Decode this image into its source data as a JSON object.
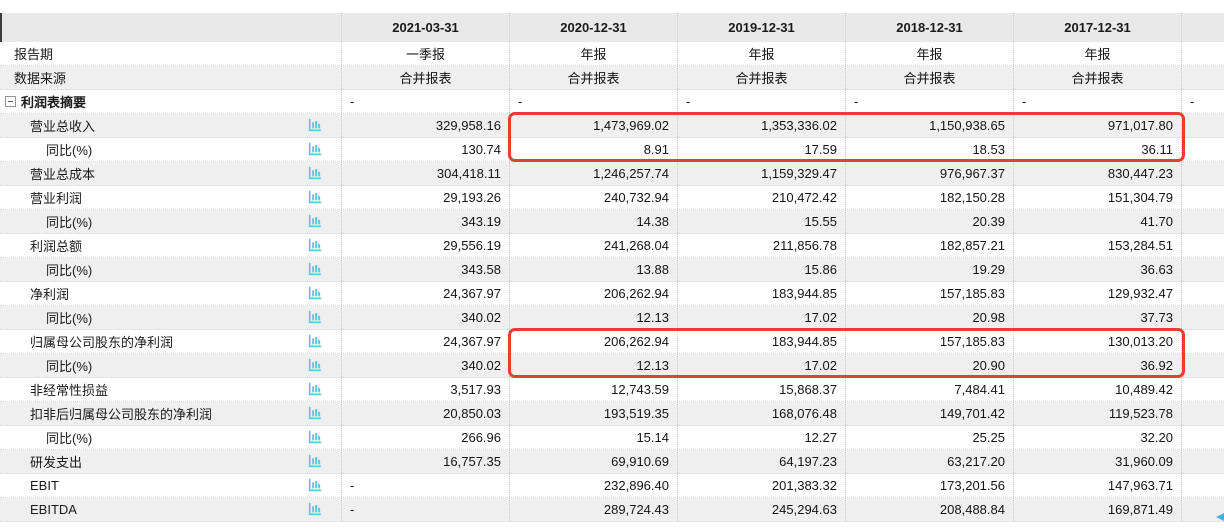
{
  "table": {
    "title": "利润表摘要",
    "columns": [
      {
        "label": "2021-03-31"
      },
      {
        "label": "2020-12-31"
      },
      {
        "label": "2019-12-31"
      },
      {
        "label": "2018-12-31"
      },
      {
        "label": "2017-12-31"
      }
    ],
    "rows": [
      {
        "label": "报告期",
        "indent": 0,
        "icon": false,
        "align": "center",
        "values": [
          "一季报",
          "年报",
          "年报",
          "年报",
          "年报",
          ""
        ]
      },
      {
        "label": "数据来源",
        "indent": 0,
        "icon": false,
        "align": "center",
        "values": [
          "合并报表",
          "合并报表",
          "合并报表",
          "合并报表",
          "合并报表",
          ""
        ]
      },
      {
        "label": "利润表摘要",
        "section": true,
        "icon": false,
        "values": [
          "-",
          "-",
          "-",
          "-",
          "-",
          "-"
        ]
      },
      {
        "label": "营业总收入",
        "indent": 1,
        "icon": true,
        "values": [
          "329,958.16",
          "1,473,969.02",
          "1,353,336.02",
          "1,150,938.65",
          "971,017.80",
          ""
        ]
      },
      {
        "label": "同比(%)",
        "indent": 2,
        "icon": true,
        "values": [
          "130.74",
          "8.91",
          "17.59",
          "18.53",
          "36.11",
          ""
        ]
      },
      {
        "label": "营业总成本",
        "indent": 1,
        "icon": true,
        "values": [
          "304,418.11",
          "1,246,257.74",
          "1,159,329.47",
          "976,967.37",
          "830,447.23",
          ""
        ]
      },
      {
        "label": "营业利润",
        "indent": 1,
        "icon": true,
        "values": [
          "29,193.26",
          "240,732.94",
          "210,472.42",
          "182,150.28",
          "151,304.79",
          ""
        ]
      },
      {
        "label": "同比(%)",
        "indent": 2,
        "icon": true,
        "values": [
          "343.19",
          "14.38",
          "15.55",
          "20.39",
          "41.70",
          ""
        ]
      },
      {
        "label": "利润总额",
        "indent": 1,
        "icon": true,
        "values": [
          "29,556.19",
          "241,268.04",
          "211,856.78",
          "182,857.21",
          "153,284.51",
          ""
        ]
      },
      {
        "label": "同比(%)",
        "indent": 2,
        "icon": true,
        "values": [
          "343.58",
          "13.88",
          "15.86",
          "19.29",
          "36.63",
          ""
        ]
      },
      {
        "label": "净利润",
        "indent": 1,
        "icon": true,
        "values": [
          "24,367.97",
          "206,262.94",
          "183,944.85",
          "157,185.83",
          "129,932.47",
          ""
        ]
      },
      {
        "label": "同比(%)",
        "indent": 2,
        "icon": true,
        "values": [
          "340.02",
          "12.13",
          "17.02",
          "20.98",
          "37.73",
          ""
        ]
      },
      {
        "label": "归属母公司股东的净利润",
        "indent": 1,
        "icon": true,
        "values": [
          "24,367.97",
          "206,262.94",
          "183,944.85",
          "157,185.83",
          "130,013.20",
          ""
        ]
      },
      {
        "label": "同比(%)",
        "indent": 2,
        "icon": true,
        "values": [
          "340.02",
          "12.13",
          "17.02",
          "20.90",
          "36.92",
          ""
        ]
      },
      {
        "label": "非经常性损益",
        "indent": 1,
        "icon": true,
        "values": [
          "3,517.93",
          "12,743.59",
          "15,868.37",
          "7,484.41",
          "10,489.42",
          ""
        ]
      },
      {
        "label": "扣非后归属母公司股东的净利润",
        "indent": 1,
        "icon": true,
        "values": [
          "20,850.03",
          "193,519.35",
          "168,076.48",
          "149,701.42",
          "119,523.78",
          ""
        ]
      },
      {
        "label": "同比(%)",
        "indent": 2,
        "icon": true,
        "values": [
          "266.96",
          "15.14",
          "12.27",
          "25.25",
          "32.20",
          ""
        ]
      },
      {
        "label": "研发支出",
        "indent": 1,
        "icon": true,
        "values": [
          "16,757.35",
          "69,910.69",
          "64,197.23",
          "63,217.20",
          "31,960.09",
          ""
        ]
      },
      {
        "label": "EBIT",
        "indent": 1,
        "icon": true,
        "values": [
          "-",
          "232,896.40",
          "201,383.32",
          "173,201.56",
          "147,963.71",
          ""
        ]
      },
      {
        "label": "EBITDA",
        "indent": 1,
        "icon": true,
        "values": [
          "-",
          "289,724.43",
          "245,294.63",
          "208,488.84",
          "169,871.49",
          ""
        ]
      }
    ]
  },
  "highlights": [
    {
      "name": "revenue-highlight",
      "rows": [
        "营业总收入",
        "同比(%)"
      ],
      "columns": [
        "2020-12-31",
        "2019-12-31",
        "2018-12-31",
        "2017-12-31"
      ],
      "color": "#e5402e"
    },
    {
      "name": "net-profit-attrib-highlight",
      "rows": [
        "归属母公司股东的净利润",
        "同比(%)"
      ],
      "columns": [
        "2020-12-31",
        "2019-12-31",
        "2018-12-31",
        "2017-12-31"
      ],
      "color": "#e5402e"
    }
  ],
  "icons": {
    "row_chart_icon": "bar-chart",
    "row_chart_icon_color": "#5cc6d9",
    "collapse_icon": "collapse-minus-box",
    "scroll_arrow": "scroll-left-arrow",
    "scroll_arrow_color": "#49aede"
  },
  "colors": {
    "header_bg": "#e9e9e9",
    "alt_row_bg": "#efefef",
    "highlight_border": "#e5402e"
  }
}
